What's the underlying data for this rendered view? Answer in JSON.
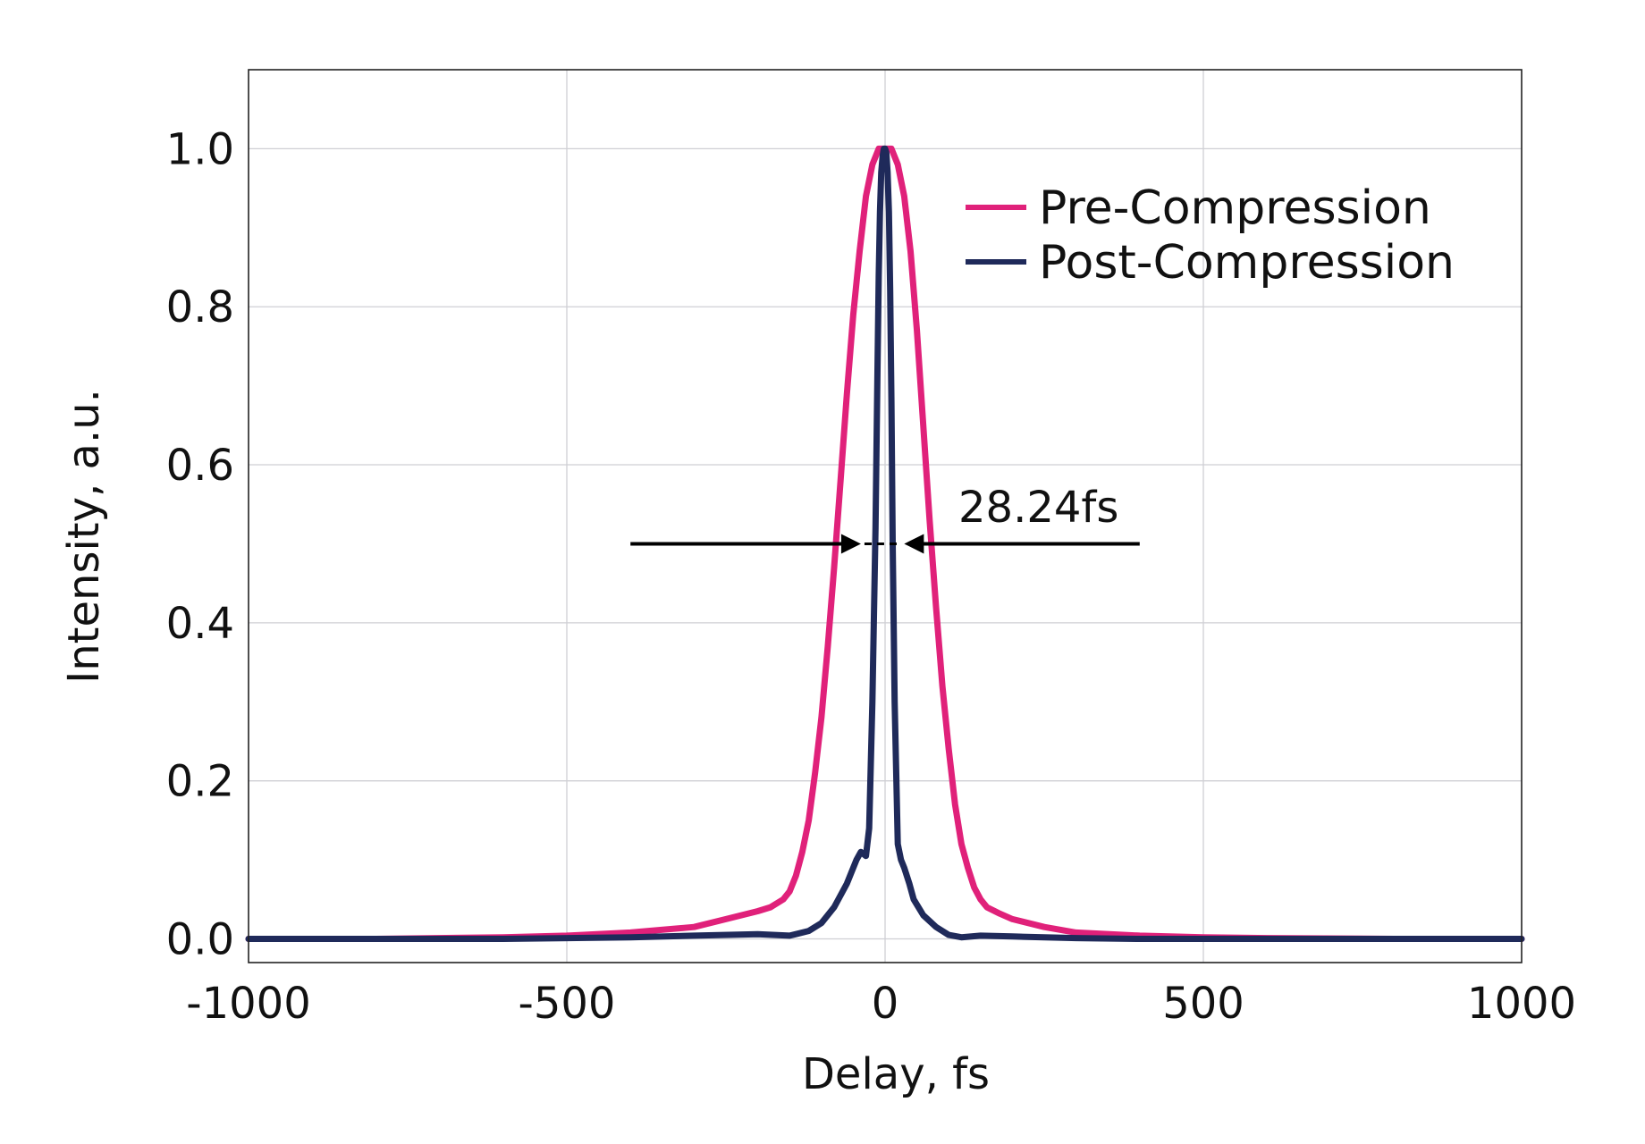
{
  "chart_data": {
    "type": "line",
    "title": "",
    "xlabel": "Delay, fs",
    "ylabel": "Intensity, a.u.",
    "xlim": [
      -1000,
      1000
    ],
    "ylim": [
      -0.03,
      1.1
    ],
    "x_ticks": [
      -1000,
      -500,
      0,
      500,
      1000
    ],
    "x_tick_labels": [
      "-1000",
      "-500",
      "0",
      "500",
      "1000"
    ],
    "y_ticks": [
      0.0,
      0.2,
      0.4,
      0.6,
      0.8,
      1.0
    ],
    "y_tick_labels": [
      "0.0",
      "0.2",
      "0.4",
      "0.6",
      "0.8",
      "1.0"
    ],
    "grid": true,
    "legend_position": "top-right",
    "series": [
      {
        "name": "Pre-Compression",
        "color": "#e0217a",
        "x": [
          -1000,
          -800,
          -600,
          -500,
          -400,
          -300,
          -250,
          -200,
          -180,
          -160,
          -150,
          -140,
          -130,
          -120,
          -110,
          -100,
          -90,
          -80,
          -70,
          -60,
          -50,
          -40,
          -30,
          -20,
          -10,
          0,
          10,
          20,
          30,
          40,
          50,
          60,
          70,
          80,
          90,
          100,
          110,
          120,
          130,
          140,
          150,
          160,
          180,
          200,
          250,
          300,
          400,
          500,
          600,
          800,
          1000
        ],
        "values": [
          0.0,
          0.0,
          0.002,
          0.004,
          0.008,
          0.015,
          0.025,
          0.035,
          0.04,
          0.05,
          0.06,
          0.08,
          0.11,
          0.15,
          0.21,
          0.28,
          0.37,
          0.47,
          0.58,
          0.69,
          0.79,
          0.87,
          0.94,
          0.98,
          1.0,
          1.0,
          1.0,
          0.98,
          0.94,
          0.87,
          0.77,
          0.65,
          0.53,
          0.42,
          0.32,
          0.24,
          0.17,
          0.12,
          0.09,
          0.065,
          0.05,
          0.04,
          0.032,
          0.025,
          0.015,
          0.008,
          0.004,
          0.002,
          0.001,
          0.0,
          0.0
        ]
      },
      {
        "name": "Post-Compression",
        "color": "#1f2a5a",
        "x": [
          -1000,
          -600,
          -400,
          -300,
          -200,
          -150,
          -120,
          -100,
          -80,
          -60,
          -45,
          -38,
          -30,
          -25,
          -20,
          -15,
          -12,
          -10,
          -8,
          -6,
          -4,
          -2,
          0,
          2,
          4,
          6,
          8,
          10,
          12,
          15,
          20,
          25,
          30,
          38,
          45,
          60,
          80,
          100,
          120,
          150,
          200,
          300,
          400,
          600,
          1000
        ],
        "values": [
          0.0,
          0.0,
          0.002,
          0.004,
          0.006,
          0.004,
          0.01,
          0.02,
          0.04,
          0.07,
          0.1,
          0.11,
          0.105,
          0.14,
          0.3,
          0.52,
          0.72,
          0.84,
          0.92,
          0.97,
          0.99,
          1.0,
          1.0,
          0.995,
          0.97,
          0.92,
          0.82,
          0.68,
          0.5,
          0.3,
          0.12,
          0.1,
          0.09,
          0.07,
          0.05,
          0.03,
          0.015,
          0.005,
          0.002,
          0.004,
          0.003,
          0.001,
          0.0,
          0.0,
          0.0
        ]
      }
    ],
    "annotations": [
      {
        "text": "28.24fs",
        "y": 0.5,
        "arrow_left_x": [
          -400,
          -38
        ],
        "arrow_right_x": [
          400,
          30
        ]
      }
    ]
  }
}
